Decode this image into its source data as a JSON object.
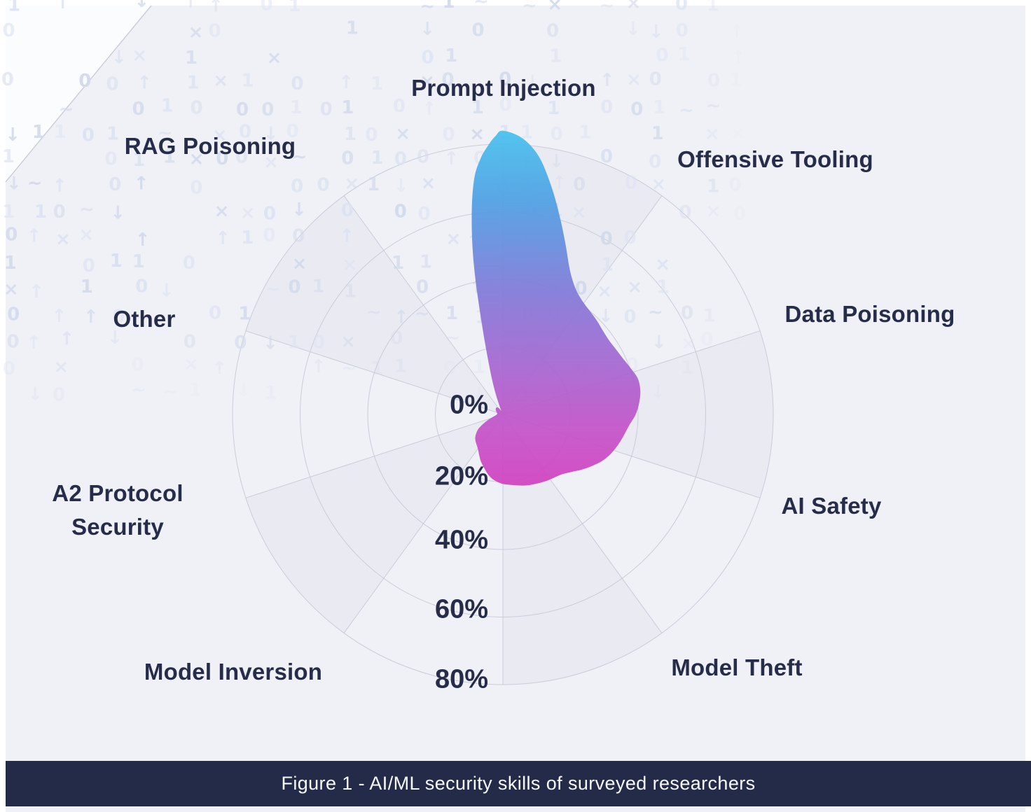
{
  "figure_caption": "Figure 1 - AI/ML security skills of surveyed researchers",
  "chart_data": {
    "type": "polar-area",
    "title": "AI/ML security skills of surveyed researchers",
    "categories": [
      "Prompt Injection",
      "Offensive Tooling",
      "Data Poisoning",
      "AI Safety",
      "Model Theft",
      "Model Inversion",
      "A2 Protocol Security",
      "Other",
      "RAG Poisoning"
    ],
    "values": [
      84,
      39,
      41,
      35,
      25,
      11,
      3,
      2,
      3
    ],
    "unit": "%",
    "radial_ticks": [
      "0%",
      "20%",
      "40%",
      "60%",
      "80%"
    ],
    "radial_axis": {
      "min": 0,
      "max": 80,
      "ring_step": 20
    },
    "angle_sectors": 10,
    "grid": {
      "rings": 4,
      "spoke_step_deg": 36,
      "alternating_shading": true
    },
    "legend": "none",
    "gradient_colors": [
      "#45C1EE",
      "#4E9FE3",
      "#8179D8",
      "#A566D1",
      "#C74FC7",
      "#D13FBE"
    ],
    "outline_samples": [
      [
        0,
        84
      ],
      [
        4,
        82
      ],
      [
        8,
        77
      ],
      [
        12,
        69
      ],
      [
        16,
        61
      ],
      [
        20,
        54
      ],
      [
        25,
        47
      ],
      [
        30,
        43
      ],
      [
        35,
        41
      ],
      [
        40,
        40
      ],
      [
        45,
        39.3
      ],
      [
        50,
        38.6
      ],
      [
        55,
        38.3
      ],
      [
        60,
        38.6
      ],
      [
        65,
        39.2
      ],
      [
        70,
        40.2
      ],
      [
        75,
        41.3
      ],
      [
        80,
        41.3
      ],
      [
        85,
        40.5
      ],
      [
        90,
        39.3
      ],
      [
        95,
        37.5
      ],
      [
        100,
        36.3
      ],
      [
        105,
        35.2
      ],
      [
        110,
        34
      ],
      [
        115,
        32.5
      ],
      [
        120,
        30.5
      ],
      [
        125,
        28.5
      ],
      [
        130,
        26.5
      ],
      [
        135,
        25
      ],
      [
        140,
        24.2
      ],
      [
        145,
        23.7
      ],
      [
        150,
        23.2
      ],
      [
        155,
        22.7
      ],
      [
        160,
        22.3
      ],
      [
        165,
        21.8
      ],
      [
        170,
        21.3
      ],
      [
        175,
        20.9
      ],
      [
        180,
        20.6
      ],
      [
        185,
        20
      ],
      [
        190,
        19.2
      ],
      [
        195,
        18
      ],
      [
        200,
        16.6
      ],
      [
        205,
        15.4
      ],
      [
        210,
        14
      ],
      [
        215,
        12.8
      ],
      [
        220,
        12
      ],
      [
        225,
        11.4
      ],
      [
        230,
        10.7
      ],
      [
        235,
        9.6
      ],
      [
        240,
        8.2
      ],
      [
        245,
        6.2
      ],
      [
        250,
        4.5
      ],
      [
        255,
        3.2
      ],
      [
        260,
        2.4
      ],
      [
        265,
        2
      ],
      [
        270,
        1.8
      ],
      [
        275,
        1.7
      ],
      [
        280,
        1.7
      ],
      [
        285,
        1.8
      ],
      [
        290,
        2
      ],
      [
        295,
        2.2
      ],
      [
        300,
        2.4
      ],
      [
        305,
        2.6
      ],
      [
        310,
        2.7
      ],
      [
        315,
        2.8
      ],
      [
        320,
        2.7
      ],
      [
        325,
        2.4
      ],
      [
        330,
        1.8
      ],
      [
        334,
        1.2
      ],
      [
        338,
        2.5
      ],
      [
        341,
        7
      ],
      [
        344,
        14
      ],
      [
        347,
        28
      ],
      [
        349,
        45
      ],
      [
        351,
        59
      ],
      [
        353,
        70
      ],
      [
        355,
        76
      ],
      [
        357,
        80
      ],
      [
        358.5,
        82.5
      ]
    ]
  },
  "background_pattern": {
    "glyphs": [
      "0",
      "1",
      "×",
      "↑",
      "↓",
      "~"
    ],
    "color_light": "#dde3f2",
    "color_dark": "#d3daeb"
  },
  "theme": {
    "page_bg": "#ffffff",
    "panel_bg": "#eff1f6",
    "grid_line": "#c9ccd9",
    "sector_shade": "#e6e8f0",
    "text_dark": "#272c49",
    "caption_bar_bg": "#242b48",
    "caption_text": "#f7f8fc"
  }
}
